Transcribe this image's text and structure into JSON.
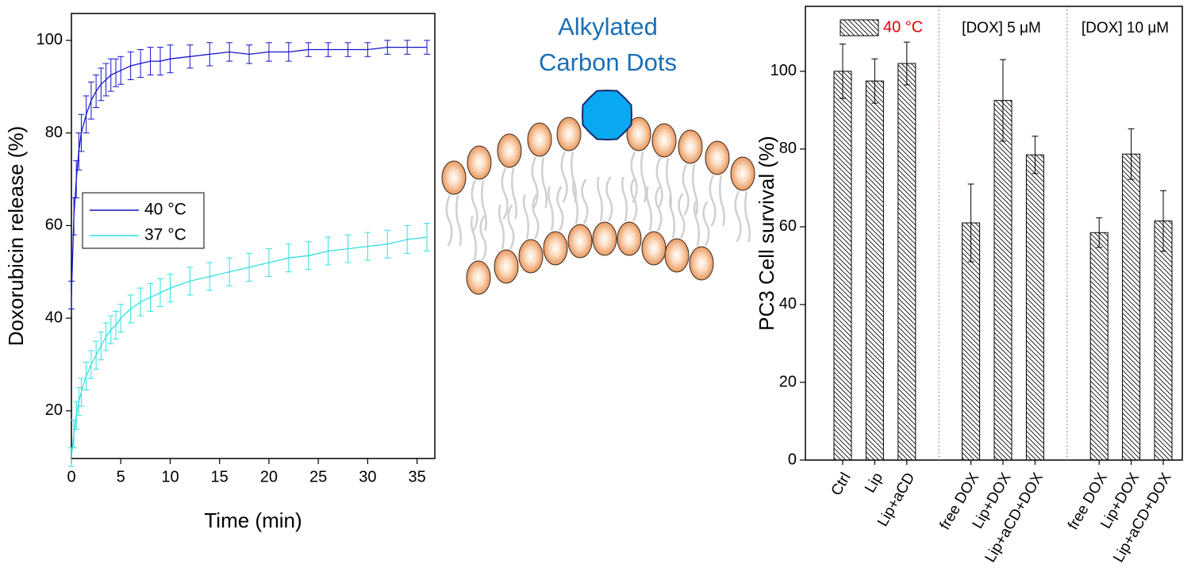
{
  "chart_data": [
    {
      "type": "line",
      "x_label": "Time (min)",
      "y_label": "Doxorubicin release (%)",
      "x": [
        0,
        0.25,
        0.5,
        0.75,
        1,
        1.5,
        2,
        2.5,
        3,
        3.5,
        4,
        4.5,
        5,
        6,
        7,
        8,
        9,
        10,
        12,
        14,
        16,
        18,
        20,
        22,
        24,
        26,
        28,
        30,
        32,
        34,
        36
      ],
      "series": [
        {
          "name": "40 °C",
          "color": "#1414c8",
          "values": [
            45,
            62,
            70,
            76,
            80,
            84,
            87,
            89,
            90.5,
            91.5,
            92.5,
            93,
            93.5,
            94.5,
            95,
            95.5,
            95.5,
            96,
            96.5,
            97,
            97.5,
            97,
            97.5,
            97.5,
            98,
            98,
            98,
            98,
            98.5,
            98.5,
            98.5
          ],
          "errors": [
            3,
            4,
            4,
            4,
            4,
            4,
            4,
            3.5,
            3.5,
            3.5,
            3.5,
            3,
            3,
            3,
            3,
            3,
            3,
            3,
            2.5,
            2.5,
            2,
            2,
            2,
            2,
            1.5,
            1.5,
            1.5,
            1.5,
            1.5,
            1.5,
            1.5
          ]
        },
        {
          "name": "37 °C",
          "color": "#33e0e0",
          "values": [
            10,
            15,
            19,
            22,
            24,
            27.5,
            30,
            32,
            34,
            36,
            37.5,
            38.5,
            40,
            42,
            43.5,
            44.5,
            45.5,
            46.5,
            48,
            49,
            50,
            51,
            52,
            53,
            53.5,
            54.5,
            55,
            55.5,
            56,
            57,
            57.5
          ],
          "errors": [
            2,
            3,
            3,
            3,
            3,
            3,
            3,
            3,
            3,
            3,
            3,
            3,
            3,
            3,
            3,
            3,
            3,
            3,
            3,
            3,
            3,
            3,
            3,
            3,
            3,
            3,
            3,
            3,
            3,
            3,
            3
          ]
        }
      ],
      "xlim": [
        0,
        36.8
      ],
      "xticks": [
        0,
        5,
        10,
        15,
        20,
        25,
        30,
        35
      ],
      "ylim": [
        9.7,
        105.8
      ],
      "yticks": [
        20,
        40,
        60,
        80,
        100
      ],
      "legend": "left"
    },
    {
      "type": "bar",
      "y_label": "PC3 Cell survival (%)",
      "categories": [
        "Ctrl",
        "Lip",
        "Lip+aCD",
        null,
        "free DOX",
        "Lip+DOX",
        "Lip+aCD+DOX",
        null,
        "free DOX",
        "Lip+DOX",
        "Lip+aCD+DOX"
      ],
      "series": [
        {
          "name": "40 °C",
          "color": "#000000",
          "values": [
            100,
            97.5,
            102,
            null,
            61,
            92.5,
            78.5,
            null,
            58.5,
            78.7,
            61.5
          ],
          "errors": [
            7,
            5.7,
            5.5,
            null,
            10,
            10.5,
            4.8,
            null,
            3.8,
            6.5,
            7.8
          ]
        }
      ],
      "ylim": [
        0,
        116.7
      ],
      "yticks": [
        0,
        20,
        40,
        60,
        80,
        100
      ],
      "annotations": [
        "[DOX] 5 μM",
        "[DOX] 10 μM"
      ],
      "legend_text_color": "#e00000",
      "separator_color": "#cc3355",
      "hatch": true
    }
  ],
  "diagram": {
    "label_lines": [
      "Alkylated",
      "Carbon Dots"
    ],
    "label_color": "#1a6fb5"
  }
}
